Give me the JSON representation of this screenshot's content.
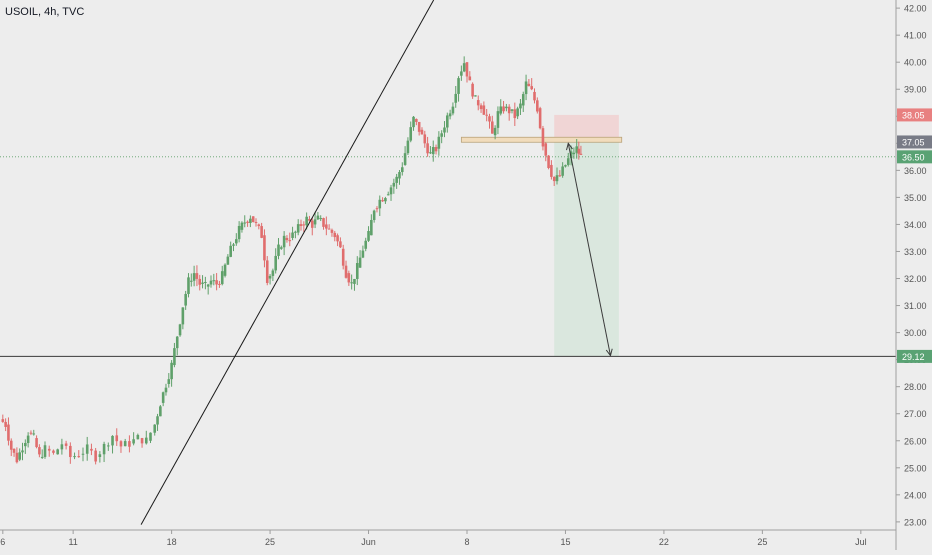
{
  "chart_data": {
    "type": "candlestick",
    "title": "USOIL, 4h, TVC",
    "ylim": [
      22.7,
      42.3
    ],
    "y_ticks": [
      "23.00",
      "24.00",
      "25.00",
      "26.00",
      "27.00",
      "28.00",
      "29.00",
      "30.00",
      "31.00",
      "32.00",
      "33.00",
      "34.00",
      "35.00",
      "36.00",
      "37.00",
      "38.00",
      "39.00",
      "40.00",
      "41.00",
      "42.00"
    ],
    "x_ticks": [
      "6",
      "11",
      "18",
      "25",
      "Jun",
      "8",
      "15",
      "22",
      "25",
      "Jul"
    ],
    "x_tick_days": [
      6,
      11,
      18,
      25,
      32,
      39,
      46,
      53,
      60,
      67
    ],
    "xlim": [
      5.8,
      69.5
    ],
    "up_color": "#5fa06a",
    "down_color": "#e06d6d",
    "trendline": {
      "p1": [
        15.83,
        22.9
      ],
      "p2": [
        36.63,
        42.3
      ]
    },
    "horizontal_line": 29.12,
    "zone": {
      "y0": 37.0,
      "y1": 37.15,
      "x0": 38.6,
      "x1": 50.0,
      "color": "#f1dcbc"
    },
    "risk_box": {
      "x0": 45.2,
      "x1": 49.8,
      "entry": 37.05,
      "stop": 38.05,
      "target": 29.12,
      "stop_color": "#f0d5d5",
      "target_color": "#dae7de"
    },
    "projection_arrow": {
      "from": [
        46.2,
        37.0
      ],
      "to": [
        49.2,
        29.15
      ]
    },
    "price_labels": [
      {
        "value": 38.05,
        "text": "38.05",
        "bg": "#e88080",
        "fg": "#ffffff"
      },
      {
        "value": 37.05,
        "text": "37.05",
        "bg": "#787b86",
        "fg": "#ffffff"
      },
      {
        "value": 36.5,
        "text": "36.50",
        "bg": "#59a273",
        "fg": "#ffffff"
      },
      {
        "value": 29.12,
        "text": "29.12",
        "bg": "#59a273",
        "fg": "#ffffff"
      }
    ],
    "current_price": 36.5,
    "series_daily_close": [
      [
        5.8,
        26.8
      ],
      [
        6.2,
        26.6
      ],
      [
        6.6,
        25.7
      ],
      [
        7.0,
        25.3
      ],
      [
        7.4,
        25.8
      ],
      [
        7.8,
        26.3
      ],
      [
        8.2,
        26.1
      ],
      [
        8.6,
        25.4
      ],
      [
        9.0,
        25.7
      ],
      [
        9.6,
        25.5
      ],
      [
        10.2,
        25.9
      ],
      [
        10.8,
        25.4
      ],
      [
        11.4,
        25.5
      ],
      [
        12.0,
        25.7
      ],
      [
        12.6,
        25.4
      ],
      [
        13.2,
        25.8
      ],
      [
        13.8,
        26.2
      ],
      [
        14.4,
        25.8
      ],
      [
        15.0,
        25.9
      ],
      [
        15.6,
        26.1
      ],
      [
        16.2,
        26.0
      ],
      [
        16.8,
        26.6
      ],
      [
        17.2,
        27.4
      ],
      [
        17.6,
        28.1
      ],
      [
        18.0,
        28.8
      ],
      [
        18.4,
        29.9
      ],
      [
        18.8,
        31.0
      ],
      [
        19.2,
        31.9
      ],
      [
        19.6,
        32.2
      ],
      [
        20.0,
        31.8
      ],
      [
        20.4,
        31.7
      ],
      [
        20.8,
        31.9
      ],
      [
        21.2,
        31.8
      ],
      [
        21.6,
        32.1
      ],
      [
        22.0,
        32.8
      ],
      [
        22.4,
        33.3
      ],
      [
        22.8,
        33.8
      ],
      [
        23.2,
        34.1
      ],
      [
        23.6,
        34.3
      ],
      [
        24.0,
        34.0
      ],
      [
        24.4,
        33.6
      ],
      [
        24.8,
        32.0
      ],
      [
        25.2,
        32.3
      ],
      [
        25.6,
        33.1
      ],
      [
        26.0,
        33.5
      ],
      [
        26.4,
        33.5
      ],
      [
        26.8,
        33.7
      ],
      [
        27.2,
        34.0
      ],
      [
        27.6,
        34.2
      ],
      [
        28.0,
        34.0
      ],
      [
        28.4,
        34.2
      ],
      [
        28.8,
        34.0
      ],
      [
        29.2,
        33.8
      ],
      [
        29.6,
        33.6
      ],
      [
        30.0,
        33.1
      ],
      [
        30.4,
        32.2
      ],
      [
        30.8,
        31.8
      ],
      [
        31.2,
        32.4
      ],
      [
        31.6,
        33.1
      ],
      [
        32.0,
        33.6
      ],
      [
        32.4,
        34.6
      ],
      [
        32.8,
        34.9
      ],
      [
        33.2,
        35.1
      ],
      [
        33.6,
        35.4
      ],
      [
        34.0,
        35.7
      ],
      [
        34.4,
        36.2
      ],
      [
        34.8,
        37.1
      ],
      [
        35.2,
        37.9
      ],
      [
        35.6,
        37.5
      ],
      [
        36.0,
        37.0
      ],
      [
        36.4,
        36.6
      ],
      [
        36.8,
        36.8
      ],
      [
        37.2,
        37.4
      ],
      [
        37.6,
        38.0
      ],
      [
        38.0,
        38.5
      ],
      [
        38.4,
        39.5
      ],
      [
        38.8,
        40.0
      ],
      [
        39.2,
        39.2
      ],
      [
        39.6,
        38.6
      ],
      [
        40.0,
        38.4
      ],
      [
        40.4,
        38.0
      ],
      [
        40.8,
        37.3
      ],
      [
        41.2,
        38.1
      ],
      [
        41.6,
        38.3
      ],
      [
        42.0,
        38.2
      ],
      [
        42.4,
        38.0
      ],
      [
        42.8,
        38.4
      ],
      [
        43.2,
        39.2
      ],
      [
        43.6,
        38.9
      ],
      [
        44.0,
        38.3
      ],
      [
        44.4,
        37.0
      ],
      [
        44.8,
        36.2
      ],
      [
        45.2,
        35.6
      ],
      [
        45.6,
        35.8
      ],
      [
        46.0,
        36.2
      ],
      [
        46.4,
        36.6
      ],
      [
        46.8,
        36.8
      ],
      [
        47.1,
        36.5
      ]
    ]
  }
}
